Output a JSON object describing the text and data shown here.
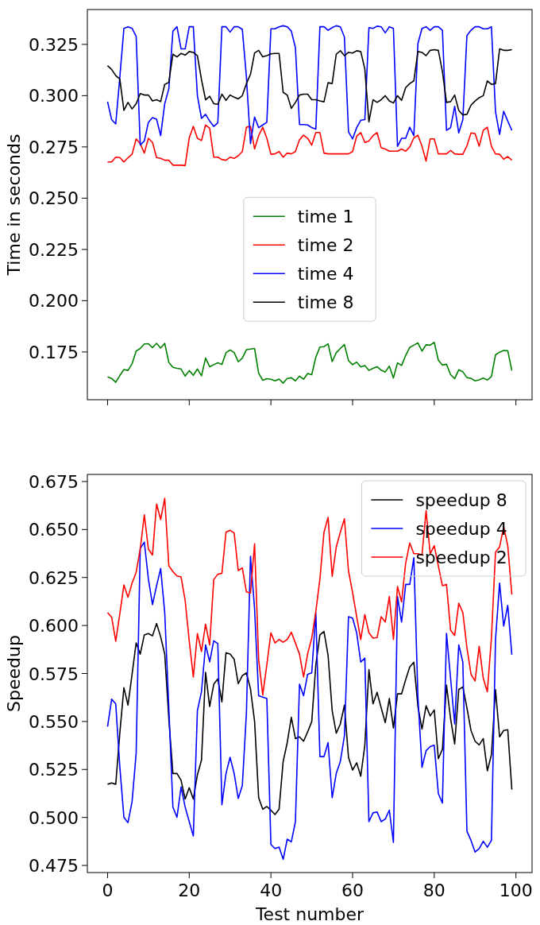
{
  "chart_data": [
    {
      "type": "line",
      "ylabel": "Time in seconds",
      "x": [
        0,
        1,
        2,
        3,
        4,
        5,
        6,
        7,
        8,
        9,
        10,
        11,
        12,
        13,
        14,
        15,
        16,
        17,
        18,
        19,
        20,
        21,
        22,
        23,
        24,
        25,
        26,
        27,
        28,
        29,
        30,
        31,
        32,
        33,
        34,
        35,
        36,
        37,
        38,
        39,
        40,
        41,
        42,
        43,
        44,
        45,
        46,
        47,
        48,
        49,
        50,
        51,
        52,
        53,
        54,
        55,
        56,
        57,
        58,
        59,
        60,
        61,
        62,
        63,
        64,
        65,
        66,
        67,
        68,
        69,
        70,
        71,
        72,
        73,
        74,
        75,
        76,
        77,
        78,
        79,
        80,
        81,
        82,
        83,
        84,
        85,
        86,
        87,
        88,
        89,
        90,
        91,
        92,
        93,
        94,
        95,
        96,
        97,
        98,
        99
      ],
      "xlim": [
        -4.95,
        103.95
      ],
      "xticks": [
        0,
        20,
        40,
        60,
        80,
        100
      ],
      "ylim": [
        0.1517,
        0.342
      ],
      "yticks": [
        0.175,
        {
          "value": 0.2,
          "label": "0.200"
        },
        0.225,
        {
          "value": 0.25,
          "label": "0.250"
        },
        0.275,
        {
          "value": 0.3,
          "label": "0.300"
        },
        0.325
      ],
      "tick_labels": "y",
      "legend": "center",
      "series": [
        {
          "name": "time 1",
          "color": "#008000",
          "values": [
            0.1628,
            0.1621,
            0.1602,
            0.1635,
            0.1664,
            0.166,
            0.1692,
            0.1754,
            0.1767,
            0.1789,
            0.179,
            0.1771,
            0.1792,
            0.1769,
            0.1792,
            0.1699,
            0.1675,
            0.167,
            0.1667,
            0.1632,
            0.1659,
            0.1636,
            0.1667,
            0.1634,
            0.172,
            0.1678,
            0.1688,
            0.1697,
            0.1689,
            0.1746,
            0.176,
            0.1747,
            0.1702,
            0.172,
            0.1761,
            0.1764,
            0.1767,
            0.1646,
            0.1612,
            0.162,
            0.1617,
            0.1609,
            0.1618,
            0.1598,
            0.1621,
            0.1624,
            0.1609,
            0.1632,
            0.1617,
            0.1645,
            0.1639,
            0.1725,
            0.1774,
            0.1776,
            0.179,
            0.1703,
            0.1746,
            0.1767,
            0.1786,
            0.1708,
            0.1688,
            0.17,
            0.1677,
            0.1684,
            0.166,
            0.167,
            0.1678,
            0.1661,
            0.1652,
            0.1681,
            0.1623,
            0.1697,
            0.1684,
            0.1733,
            0.1772,
            0.1783,
            0.1794,
            0.1754,
            0.1785,
            0.1783,
            0.1797,
            0.171,
            0.1686,
            0.169,
            0.1639,
            0.162,
            0.1663,
            0.1653,
            0.1625,
            0.1621,
            0.1609,
            0.1614,
            0.1623,
            0.1613,
            0.163,
            0.1736,
            0.1749,
            0.1757,
            0.1756,
            0.1659
          ]
        },
        {
          "name": "time 2",
          "color": "#ff0000",
          "values": [
            0.2677,
            0.2677,
            0.27,
            0.2698,
            0.2677,
            0.2697,
            0.2714,
            0.2789,
            0.2766,
            0.272,
            0.2792,
            0.2772,
            0.2698,
            0.2694,
            0.2685,
            0.2685,
            0.2661,
            0.2661,
            0.2661,
            0.2659,
            0.2794,
            0.285,
            0.2792,
            0.2781,
            0.2857,
            0.2841,
            0.27,
            0.27,
            0.2688,
            0.2685,
            0.27,
            0.2694,
            0.2707,
            0.2727,
            0.2846,
            0.285,
            0.274,
            0.2805,
            0.2846,
            0.2792,
            0.2714,
            0.2716,
            0.2727,
            0.27,
            0.272,
            0.2716,
            0.2727,
            0.2785,
            0.2807,
            0.2792,
            0.2759,
            0.282,
            0.282,
            0.272,
            0.2716,
            0.2716,
            0.2716,
            0.2716,
            0.2716,
            0.2716,
            0.2727,
            0.2802,
            0.282,
            0.2772,
            0.2779,
            0.2805,
            0.282,
            0.2746,
            0.274,
            0.2729,
            0.2729,
            0.2729,
            0.274,
            0.2729,
            0.275,
            0.2794,
            0.2807,
            0.2753,
            0.2681,
            0.2789,
            0.2789,
            0.2716,
            0.2716,
            0.2716,
            0.2733,
            0.2716,
            0.2714,
            0.2714,
            0.2755,
            0.2818,
            0.2815,
            0.2753,
            0.2831,
            0.2846,
            0.2753,
            0.2716,
            0.2714,
            0.269,
            0.2703,
            0.2685
          ]
        },
        {
          "name": "time 4",
          "color": "#0000ff",
          "values": [
            0.2971,
            0.2883,
            0.2862,
            0.309,
            0.3328,
            0.3336,
            0.3328,
            0.3289,
            0.2759,
            0.2779,
            0.287,
            0.2893,
            0.2885,
            0.2805,
            0.2961,
            0.3033,
            0.3315,
            0.3336,
            0.3228,
            0.3228,
            0.3336,
            0.3336,
            0.3,
            0.2889,
            0.2909,
            0.2876,
            0.285,
            0.2867,
            0.3336,
            0.3336,
            0.331,
            0.3336,
            0.3336,
            0.3323,
            0.3091,
            0.2766,
            0.2896,
            0.2844,
            0.2857,
            0.287,
            0.3326,
            0.3326,
            0.3336,
            0.3341,
            0.3336,
            0.3315,
            0.3234,
            0.2859,
            0.2859,
            0.2857,
            0.2844,
            0.2837,
            0.3336,
            0.3336,
            0.3319,
            0.3332,
            0.3341,
            0.3336,
            0.3286,
            0.2824,
            0.2789,
            0.2844,
            0.288,
            0.2883,
            0.3332,
            0.3328,
            0.3339,
            0.3336,
            0.3306,
            0.3336,
            0.3328,
            0.2753,
            0.2792,
            0.2792,
            0.2846,
            0.2805,
            0.3254,
            0.3328,
            0.3336,
            0.3319,
            0.3336,
            0.3336,
            0.3319,
            0.2831,
            0.2844,
            0.2948,
            0.2818,
            0.2883,
            0.3293,
            0.3319,
            0.3336,
            0.3336,
            0.3326,
            0.3326,
            0.3336,
            0.2922,
            0.2811,
            0.2924,
            0.2876,
            0.2831
          ]
        },
        {
          "name": "time 8",
          "color": "#000000",
          "values": [
            0.3146,
            0.3128,
            0.3098,
            0.3081,
            0.2928,
            0.2967,
            0.2935,
            0.2961,
            0.301,
            0.3003,
            0.3003,
            0.2974,
            0.298,
            0.2971,
            0.3055,
            0.3065,
            0.3202,
            0.3189,
            0.3206,
            0.3198,
            0.3215,
            0.3211,
            0.3195,
            0.3078,
            0.298,
            0.2997,
            0.2961,
            0.2958,
            0.3007,
            0.2977,
            0.3003,
            0.2993,
            0.2984,
            0.3,
            0.3059,
            0.3104,
            0.3208,
            0.3221,
            0.3189,
            0.3195,
            0.3204,
            0.3206,
            0.3206,
            0.3016,
            0.3003,
            0.2938,
            0.2967,
            0.3003,
            0.3007,
            0.3007,
            0.298,
            0.298,
            0.2974,
            0.297,
            0.3063,
            0.3059,
            0.3202,
            0.3219,
            0.3195,
            0.3211,
            0.3208,
            0.3219,
            0.3215,
            0.313,
            0.2872,
            0.298,
            0.2967,
            0.298,
            0.3,
            0.2974,
            0.2964,
            0.3,
            0.2977,
            0.3039,
            0.3059,
            0.3072,
            0.3215,
            0.3211,
            0.3195,
            0.3221,
            0.3224,
            0.3221,
            0.3117,
            0.2967,
            0.2971,
            0.3003,
            0.2928,
            0.2906,
            0.2909,
            0.2954,
            0.2974,
            0.299,
            0.3,
            0.3072,
            0.3055,
            0.3059,
            0.3228,
            0.3221,
            0.3221,
            0.3224
          ]
        }
      ]
    },
    {
      "type": "line",
      "xlabel": "Test number",
      "ylabel": "Speedup",
      "x": [
        0,
        1,
        2,
        3,
        4,
        5,
        6,
        7,
        8,
        9,
        10,
        11,
        12,
        13,
        14,
        15,
        16,
        17,
        18,
        19,
        20,
        21,
        22,
        23,
        24,
        25,
        26,
        27,
        28,
        29,
        30,
        31,
        32,
        33,
        34,
        35,
        36,
        37,
        38,
        39,
        40,
        41,
        42,
        43,
        44,
        45,
        46,
        47,
        48,
        49,
        50,
        51,
        52,
        53,
        54,
        55,
        56,
        57,
        58,
        59,
        60,
        61,
        62,
        63,
        64,
        65,
        66,
        67,
        68,
        69,
        70,
        71,
        72,
        73,
        74,
        75,
        76,
        77,
        78,
        79,
        80,
        81,
        82,
        83,
        84,
        85,
        86,
        87,
        88,
        89,
        90,
        91,
        92,
        93,
        94,
        95,
        96,
        97,
        98,
        99
      ],
      "xlim": [
        -4.95,
        103.95
      ],
      "xticks": [
        0,
        20,
        40,
        60,
        80,
        100
      ],
      "ylim": [
        0.4713,
        0.6787
      ],
      "yticks": [
        0.475,
        {
          "value": 0.5,
          "label": "0.500"
        },
        0.525,
        {
          "value": 0.55,
          "label": "0.550"
        },
        0.575,
        {
          "value": 0.6,
          "label": "0.600"
        },
        0.625,
        {
          "value": 0.65,
          "label": "0.650"
        },
        0.675
      ],
      "legend": "top right",
      "series": [
        {
          "name": "speedup 8",
          "color": "#000000",
          "values": [
            0.5173,
            0.518,
            0.5173,
            0.5439,
            0.5676,
            0.5585,
            0.5746,
            0.5909,
            0.5851,
            0.5951,
            0.5958,
            0.5946,
            0.6011,
            0.5941,
            0.5851,
            0.5515,
            0.5229,
            0.5229,
            0.5194,
            0.5096,
            0.5155,
            0.5096,
            0.5222,
            0.5299,
            0.5756,
            0.5578,
            0.5694,
            0.5722,
            0.5602,
            0.5858,
            0.5851,
            0.5825,
            0.5697,
            0.5739,
            0.5753,
            0.5669,
            0.5501,
            0.5103,
            0.5043,
            0.5057,
            0.5038,
            0.5015,
            0.5043,
            0.5292,
            0.539,
            0.5522,
            0.5411,
            0.542,
            0.5397,
            0.5446,
            0.5499,
            0.5795,
            0.5951,
            0.5969,
            0.5844,
            0.5557,
            0.5439,
            0.5487,
            0.5585,
            0.5313,
            0.5247,
            0.5285,
            0.5215,
            0.5376,
            0.577,
            0.5592,
            0.5652,
            0.5571,
            0.5494,
            0.562,
            0.5466,
            0.5644,
            0.5644,
            0.5718,
            0.5784,
            0.5809,
            0.5578,
            0.546,
            0.5582,
            0.5529,
            0.556,
            0.5306,
            0.5355,
            0.569,
            0.5515,
            0.5383,
            0.5666,
            0.568,
            0.5571,
            0.5453,
            0.5397,
            0.5378,
            0.5411,
            0.5243,
            0.5327,
            0.5666,
            0.542,
            0.5453,
            0.5457,
            0.5145
          ]
        },
        {
          "name": "speedup 4",
          "color": "#0000ff",
          "values": [
            0.5473,
            0.5616,
            0.5592,
            0.5264,
            0.5001,
            0.4973,
            0.5082,
            0.5334,
            0.6402,
            0.6434,
            0.6242,
            0.6109,
            0.6207,
            0.6297,
            0.6067,
            0.5571,
            0.5054,
            0.5001,
            0.5159,
            0.5054,
            0.4978,
            0.4904,
            0.5557,
            0.5655,
            0.5899,
            0.5811,
            0.592,
            0.5906,
            0.5066,
            0.5229,
            0.5313,
            0.5229,
            0.5099,
            0.5166,
            0.5543,
            0.636,
            0.6088,
            0.5634,
            0.5627,
            0.562,
            0.4859,
            0.4838,
            0.4845,
            0.4782,
            0.4887,
            0.4873,
            0.4978,
            0.5694,
            0.5634,
            0.5746,
            0.5753,
            0.6067,
            0.5317,
            0.5317,
            0.539,
            0.5103,
            0.5229,
            0.5292,
            0.5425,
            0.6046,
            0.6039,
            0.5962,
            0.5809,
            0.583,
            0.4978,
            0.5024,
            0.5029,
            0.4978,
            0.4992,
            0.5038,
            0.487,
            0.6151,
            0.6018,
            0.6214,
            0.6214,
            0.6353,
            0.5627,
            0.5261,
            0.5348,
            0.5369,
            0.5376,
            0.5124,
            0.5075,
            0.5959,
            0.5725,
            0.5487,
            0.5899,
            0.5809,
            0.4929,
            0.488,
            0.482,
            0.4838,
            0.4876,
            0.4845,
            0.488,
            0.5927,
            0.6221,
            0.5997,
            0.6105,
            0.5848
          ]
        },
        {
          "name": "speedup 2",
          "color": "#ff0000",
          "values": [
            0.6067,
            0.6043,
            0.5918,
            0.606,
            0.6211,
            0.6147,
            0.6221,
            0.6277,
            0.6398,
            0.6577,
            0.6398,
            0.6367,
            0.6633,
            0.6552,
            0.6663,
            0.6311,
            0.6281,
            0.6258,
            0.6253,
            0.613,
            0.592,
            0.5732,
            0.5958,
            0.5865,
            0.6007,
            0.5899,
            0.6239,
            0.6267,
            0.6272,
            0.6486,
            0.6496,
            0.6482,
            0.6286,
            0.63,
            0.6175,
            0.6169,
            0.6426,
            0.5823,
            0.5638,
            0.5795,
            0.5962,
            0.5909,
            0.5927,
            0.5913,
            0.5927,
            0.5965,
            0.5909,
            0.5851,
            0.5732,
            0.5853,
            0.5934,
            0.6074,
            0.6242,
            0.6486,
            0.6563,
            0.6256,
            0.6409,
            0.6486,
            0.6556,
            0.6284,
            0.6172,
            0.6046,
            0.5927,
            0.6057,
            0.5962,
            0.5934,
            0.5937,
            0.6046,
            0.6018,
            0.6151,
            0.5927,
            0.6203,
            0.6123,
            0.6325,
            0.643,
            0.6374,
            0.6374,
            0.6367,
            0.6598,
            0.6374,
            0.6416,
            0.6311,
            0.6207,
            0.6214,
            0.5976,
            0.5948,
            0.6116,
            0.6067,
            0.5885,
            0.5746,
            0.5711,
            0.5892,
            0.5725,
            0.5655,
            0.5934,
            0.6381,
            0.6409,
            0.6514,
            0.6416,
            0.6161
          ]
        }
      ]
    }
  ]
}
